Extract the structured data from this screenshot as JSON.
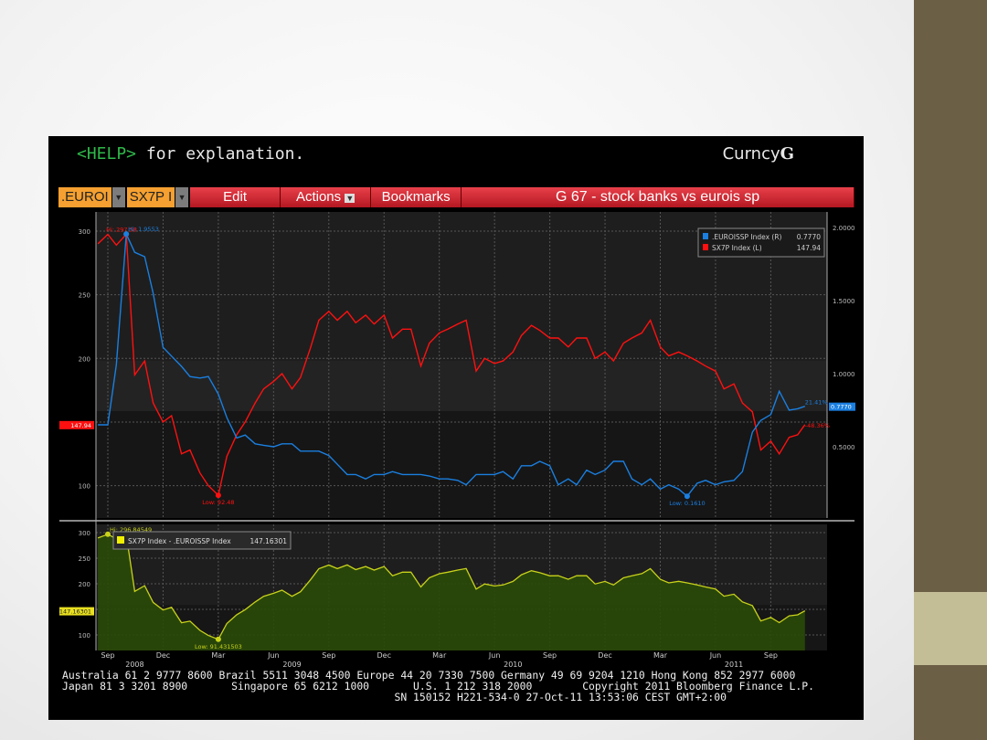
{
  "screen": {
    "help_key": "<HELP>",
    "help_text": " for explanation.",
    "brand_prefix": "Curncy",
    "brand_key": "G"
  },
  "toolbar": {
    "ticker1": ".EUROI",
    "ticker2": "SX7P I",
    "edit": "Edit",
    "actions": "Actions",
    "bookmarks": "Bookmarks",
    "title": "G 67 - stock banks vs eurois sp"
  },
  "colors": {
    "red_series": "#ff1010",
    "blue_series": "#1a7fe0",
    "spread": "#c8d21a",
    "spread_fill": "#2a4a08",
    "toolbar": "#d02a32",
    "ticker_bg": "#f5a030"
  },
  "chart_data": [
    {
      "type": "line",
      "legend_position": "top-right",
      "grid": true,
      "x": [
        "2008-08-15",
        "2008-09-01",
        "2008-09-15",
        "2008-10-01",
        "2008-10-15",
        "2008-11-01",
        "2008-11-15",
        "2008-12-01",
        "2008-12-15",
        "2009-01-01",
        "2009-01-15",
        "2009-02-01",
        "2009-02-15",
        "2009-03-01",
        "2009-03-15",
        "2009-04-01",
        "2009-04-15",
        "2009-05-01",
        "2009-05-15",
        "2009-06-01",
        "2009-06-15",
        "2009-07-01",
        "2009-07-15",
        "2009-08-01",
        "2009-08-15",
        "2009-09-01",
        "2009-09-15",
        "2009-10-01",
        "2009-10-15",
        "2009-11-01",
        "2009-11-15",
        "2009-12-01",
        "2009-12-15",
        "2010-01-01",
        "2010-01-15",
        "2010-02-01",
        "2010-02-15",
        "2010-03-01",
        "2010-03-15",
        "2010-04-01",
        "2010-04-15",
        "2010-05-01",
        "2010-05-15",
        "2010-06-01",
        "2010-06-15",
        "2010-07-01",
        "2010-07-15",
        "2010-08-01",
        "2010-08-15",
        "2010-09-01",
        "2010-09-15",
        "2010-10-01",
        "2010-10-15",
        "2010-11-01",
        "2010-11-15",
        "2010-12-01",
        "2010-12-15",
        "2011-01-01",
        "2011-01-15",
        "2011-02-01",
        "2011-02-15",
        "2011-03-01",
        "2011-03-15",
        "2011-04-01",
        "2011-04-15",
        "2011-05-01",
        "2011-05-15",
        "2011-06-01",
        "2011-06-15",
        "2011-07-01",
        "2011-07-15",
        "2011-08-01",
        "2011-08-15",
        "2011-09-01",
        "2011-09-15",
        "2011-10-01",
        "2011-10-15",
        "2011-10-27"
      ],
      "x_ticks": [
        {
          "date": "2008-09-01",
          "label": "Sep"
        },
        {
          "date": "2008-12-01",
          "label": "Dec"
        },
        {
          "date": "2009-03-01",
          "label": "Mar"
        },
        {
          "date": "2009-06-01",
          "label": "Jun"
        },
        {
          "date": "2009-09-01",
          "label": "Sep"
        },
        {
          "date": "2009-12-01",
          "label": "Dec"
        },
        {
          "date": "2010-03-01",
          "label": "Mar"
        },
        {
          "date": "2010-06-01",
          "label": "Jun"
        },
        {
          "date": "2010-09-01",
          "label": "Sep"
        },
        {
          "date": "2010-12-01",
          "label": "Dec"
        },
        {
          "date": "2011-03-01",
          "label": "Mar"
        },
        {
          "date": "2011-06-01",
          "label": "Jun"
        },
        {
          "date": "2011-09-01",
          "label": "Sep"
        }
      ],
      "x_years": [
        {
          "date": "2008-10-15",
          "label": "2008"
        },
        {
          "date": "2009-07-01",
          "label": "2009"
        },
        {
          "date": "2010-07-01",
          "label": "2010"
        },
        {
          "date": "2011-07-01",
          "label": "2011"
        }
      ],
      "y_left": {
        "ticks": [
          100,
          150,
          200,
          250,
          300
        ],
        "tick_labels": [
          "100",
          "",
          "200",
          "250",
          "300"
        ],
        "range": [
          80,
          305
        ],
        "current_label": "147.94"
      },
      "y_right": {
        "ticks": [
          0.5,
          1.0,
          1.5,
          2.0
        ],
        "tick_labels": [
          "0.5000",
          "1.0000",
          "1.5000",
          "2.0000"
        ],
        "range": [
          0.1,
          2.03
        ],
        "current_label": "0.7770"
      },
      "series": [
        {
          "name": ".EUROISSP Index (R)",
          "last": "0.7770",
          "axis": "right",
          "change_label": "21.41%",
          "hi_label": "Hi: 1.9553",
          "low_label": "Low: 0.1610",
          "values": [
            0.65,
            0.65,
            1.06,
            1.9553,
            1.83,
            1.8,
            1.55,
            1.18,
            1.12,
            1.05,
            0.98,
            0.97,
            0.98,
            0.86,
            0.7,
            0.56,
            0.58,
            0.52,
            0.51,
            0.5,
            0.52,
            0.52,
            0.47,
            0.47,
            0.47,
            0.44,
            0.38,
            0.31,
            0.31,
            0.28,
            0.31,
            0.31,
            0.33,
            0.31,
            0.31,
            0.31,
            0.3,
            0.28,
            0.28,
            0.27,
            0.24,
            0.31,
            0.31,
            0.31,
            0.33,
            0.28,
            0.37,
            0.37,
            0.4,
            0.37,
            0.24,
            0.28,
            0.24,
            0.34,
            0.31,
            0.34,
            0.4,
            0.4,
            0.28,
            0.24,
            0.28,
            0.21,
            0.24,
            0.21,
            0.161,
            0.25,
            0.27,
            0.24,
            0.26,
            0.27,
            0.33,
            0.6,
            0.68,
            0.72,
            0.88,
            0.75,
            0.76,
            0.777
          ]
        },
        {
          "name": "SX7P Index (L)",
          "last": "147.94",
          "axis": "left",
          "change_label": "-48.36%",
          "hi_label": "Hi: 297.58",
          "low_label": "Low: 92.48",
          "values": [
            290,
            297.5,
            289,
            297.58,
            187,
            198,
            165,
            150,
            155,
            125,
            128,
            110,
            100,
            92.48,
            123,
            140,
            150,
            165,
            176,
            182,
            188,
            176,
            185,
            208,
            230,
            237,
            230,
            237,
            228,
            234,
            227,
            234,
            216,
            223,
            223,
            194,
            212,
            220,
            223,
            227,
            230,
            190,
            200,
            196,
            198,
            205,
            218,
            226,
            222,
            216,
            216,
            209,
            216,
            216,
            200,
            205,
            198,
            212,
            216,
            220,
            230,
            209,
            202,
            205,
            202,
            198,
            194,
            190,
            176,
            180,
            165,
            158,
            128,
            135,
            125,
            138,
            140,
            147.94
          ]
        }
      ]
    },
    {
      "type": "area",
      "legend_position": "top-left",
      "grid": true,
      "y_axis": {
        "ticks": [
          100,
          150,
          200,
          250,
          300
        ],
        "tick_labels": [
          "100",
          "",
          "200",
          "250",
          "300"
        ],
        "range": [
          82,
          310
        ],
        "current_label": "147.16301"
      },
      "series": [
        {
          "name": "SX7P Index - .EUROISSP Index",
          "last": "147.16301",
          "hi_label": "Hi: 296.84549",
          "low_label": "Low: 91.431503",
          "values": [
            289.4,
            296.85,
            287.9,
            295.6,
            185.2,
            196.2,
            163.5,
            148.8,
            153.9,
            124.0,
            127.0,
            109.0,
            99.0,
            91.43,
            122.3,
            139.4,
            149.4,
            164.5,
            175.5,
            181.5,
            187.5,
            175.5,
            184.5,
            207.5,
            229.5,
            236.6,
            229.6,
            236.7,
            227.7,
            233.7,
            226.7,
            233.7,
            215.7,
            222.7,
            222.7,
            193.7,
            211.7,
            219.7,
            222.7,
            226.7,
            229.8,
            189.7,
            199.7,
            195.7,
            197.7,
            204.7,
            217.6,
            225.6,
            221.6,
            215.6,
            215.8,
            208.7,
            215.8,
            215.7,
            199.7,
            204.7,
            197.6,
            211.6,
            215.7,
            219.8,
            229.7,
            208.8,
            201.8,
            204.8,
            201.8,
            197.8,
            193.7,
            189.8,
            175.7,
            179.7,
            164.7,
            157.4,
            127.3,
            134.3,
            124.1,
            137.3,
            139.2,
            147.16
          ]
        }
      ]
    }
  ],
  "footer": {
    "line1": "Australia 61 2 9777 8600 Brazil 5511 3048 4500 Europe 44 20 7330 7500 Germany 49 69 9204 1210 Hong Kong 852 2977 6000",
    "line2": "Japan 81 3 3201 8900       Singapore 65 6212 1000       U.S. 1 212 318 2000        Copyright 2011 Bloomberg Finance L.P.",
    "line3": "                                                     SN 150152 H221-534-0 27-Oct-11 13:53:06 CEST GMT+2:00"
  }
}
